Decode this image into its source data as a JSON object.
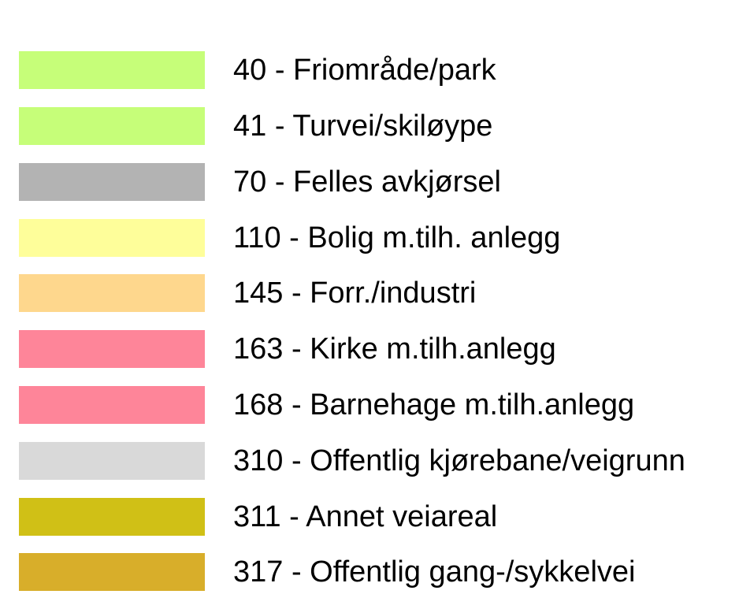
{
  "legend": {
    "items": [
      {
        "label": "40 - Friområde/park",
        "color": "#c6fe79"
      },
      {
        "label": "41 - Turvei/skiløype",
        "color": "#c6fe79"
      },
      {
        "label": "70 - Felles avkjørsel",
        "color": "#b3b3b3"
      },
      {
        "label": "110 - Bolig m.tilh. anlegg",
        "color": "#fefe9a"
      },
      {
        "label": "145 - Forr./industri",
        "color": "#fed78d"
      },
      {
        "label": "163 - Kirke m.tilh.anlegg",
        "color": "#fe8599"
      },
      {
        "label": "168 - Barnehage m.tilh.anlegg",
        "color": "#fe8599"
      },
      {
        "label": "310 - Offentlig kjørebane/veigrunn",
        "color": "#d9d9d9"
      },
      {
        "label": "311 - Annet veiareal",
        "color": "#d0c016"
      },
      {
        "label": "317 - Offentlig gang-/sykkelvei",
        "color": "#d8ae2a"
      }
    ]
  }
}
